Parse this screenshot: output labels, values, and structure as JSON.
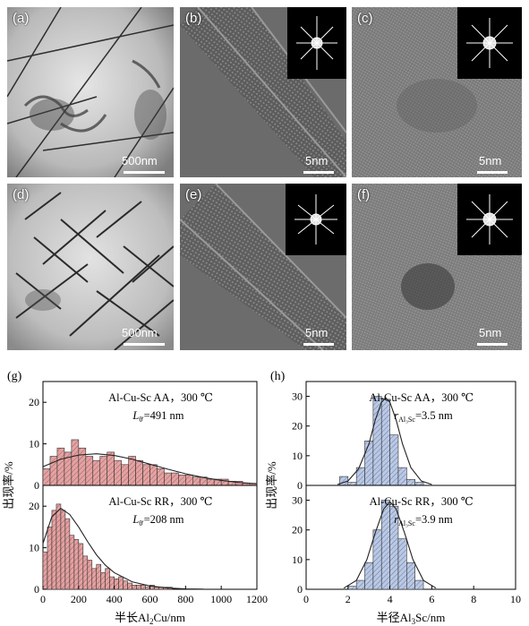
{
  "panels": [
    {
      "label": "(a)",
      "scale": "500nm"
    },
    {
      "label": "(b)",
      "scale": "5nm"
    },
    {
      "label": "(c)",
      "scale": "5nm"
    },
    {
      "label": "(d)",
      "scale": "500nm"
    },
    {
      "label": "(e)",
      "scale": "5nm"
    },
    {
      "label": "(f)",
      "scale": "5nm"
    }
  ],
  "chart_data": [
    {
      "type": "bar",
      "panel_label": "(g)",
      "ylabel": "出现率/%",
      "xlabel_prefix": "半长Al",
      "xlabel_sub": "2",
      "xlabel_suffix": "Cu/nm",
      "xlim": [
        0,
        1200
      ],
      "xticks": [
        0,
        200,
        400,
        600,
        800,
        1000,
        1200
      ],
      "bar_color": "#e8a0a0",
      "sub_charts": [
        {
          "label": "Al-Cu-Sc AA，300 ℃",
          "stat_name": "L",
          "stat_sub": "θ'",
          "stat_value": "=491 nm",
          "ylim": [
            0,
            25
          ],
          "yticks": [
            0,
            10,
            20
          ],
          "bin_width": 40,
          "bins_start": [
            0,
            40,
            80,
            120,
            160,
            200,
            240,
            280,
            320,
            360,
            400,
            440,
            480,
            520,
            560,
            600,
            640,
            680,
            720,
            760,
            800,
            840,
            880,
            920,
            960,
            1000,
            1040,
            1080,
            1120,
            1160
          ],
          "values": [
            4,
            7,
            9,
            8,
            11,
            9,
            7,
            6,
            7,
            8,
            6,
            5,
            7,
            6,
            5,
            5,
            4,
            3,
            3,
            2.5,
            2.5,
            2,
            2,
            1.5,
            1.5,
            1.5,
            1,
            1,
            0.5,
            0.5
          ],
          "fit_curve": [
            [
              0,
              4.5
            ],
            [
              100,
              6.3
            ],
            [
              200,
              7.3
            ],
            [
              300,
              7.6
            ],
            [
              400,
              7.2
            ],
            [
              500,
              6.3
            ],
            [
              600,
              5.1
            ],
            [
              700,
              3.9
            ],
            [
              800,
              2.8
            ],
            [
              900,
              1.9
            ],
            [
              1000,
              1.2
            ],
            [
              1100,
              0.7
            ],
            [
              1200,
              0.4
            ]
          ]
        },
        {
          "label": "Al-Cu-Sc RR，300 ℃",
          "stat_name": "L",
          "stat_sub": "θ'",
          "stat_value": "=208 nm",
          "ylim": [
            0,
            25
          ],
          "yticks": [
            0,
            10,
            20
          ],
          "bin_width": 25,
          "bins_start": [
            0,
            25,
            50,
            75,
            100,
            125,
            150,
            175,
            200,
            225,
            250,
            275,
            300,
            325,
            350,
            375,
            400,
            425,
            450,
            475,
            500,
            525,
            550,
            575,
            600,
            625,
            650,
            675,
            700
          ],
          "values": [
            9,
            15,
            19,
            20.5,
            19,
            17,
            13,
            12,
            11,
            8,
            7,
            5,
            6,
            4,
            5,
            3,
            2.5,
            3,
            2,
            1.5,
            1,
            1,
            1,
            0.5,
            1,
            0.5,
            0.5,
            0.5,
            0.5
          ],
          "fit_curve": [
            [
              0,
              11
            ],
            [
              50,
              17.5
            ],
            [
              100,
              19.5
            ],
            [
              150,
              18
            ],
            [
              200,
              15
            ],
            [
              250,
              11.5
            ],
            [
              300,
              8.3
            ],
            [
              350,
              5.8
            ],
            [
              400,
              4
            ],
            [
              500,
              1.8
            ],
            [
              600,
              0.8
            ],
            [
              700,
              0.3
            ],
            [
              800,
              0.1
            ],
            [
              900,
              0.05
            ]
          ]
        }
      ]
    },
    {
      "type": "bar",
      "panel_label": "(h)",
      "ylabel": "出现率/%",
      "xlabel_prefix": "半径Al",
      "xlabel_sub": "3",
      "xlabel_suffix": "Sc/nm",
      "xlim": [
        0,
        10
      ],
      "xticks": [
        0,
        2,
        4,
        6,
        8,
        10
      ],
      "bar_color": "#b8c8e8",
      "sub_charts": [
        {
          "label": "Al-Cu-Sc AA，300 ℃",
          "stat_name": "r",
          "stat_sub": "Al₃Sc",
          "stat_value": "=3.5 nm",
          "ylim": [
            0,
            35
          ],
          "yticks": [
            0,
            10,
            20,
            30
          ],
          "bin_width": 0.4,
          "bins_start": [
            1.6,
            2.0,
            2.4,
            2.8,
            3.2,
            3.6,
            4.0,
            4.4,
            4.8,
            5.2
          ],
          "values": [
            3,
            1,
            6,
            15,
            30,
            29,
            17,
            6,
            2,
            1
          ],
          "fit_curve": [
            [
              1.5,
              0.3
            ],
            [
              2.0,
              1.5
            ],
            [
              2.5,
              5.5
            ],
            [
              3.0,
              14
            ],
            [
              3.3,
              22
            ],
            [
              3.6,
              28
            ],
            [
              3.8,
              29.5
            ],
            [
              4.0,
              28
            ],
            [
              4.3,
              22
            ],
            [
              4.6,
              14
            ],
            [
              5.0,
              6
            ],
            [
              5.5,
              1.5
            ],
            [
              6.0,
              0.3
            ]
          ]
        },
        {
          "label": "Al-Cu-Sc RR，300 ℃",
          "stat_name": "r",
          "stat_sub": "Al₃Sc",
          "stat_value": "=3.9 nm",
          "ylim": [
            0,
            35
          ],
          "yticks": [
            0,
            10,
            20,
            30
          ],
          "bin_width": 0.4,
          "bins_start": [
            2.0,
            2.4,
            2.8,
            3.2,
            3.6,
            4.0,
            4.4,
            4.8,
            5.2
          ],
          "values": [
            1,
            3,
            9,
            20,
            30,
            28,
            17,
            9,
            3
          ],
          "fit_curve": [
            [
              1.8,
              0.4
            ],
            [
              2.4,
              3
            ],
            [
              2.9,
              10
            ],
            [
              3.3,
              19
            ],
            [
              3.7,
              27
            ],
            [
              4.0,
              29.5
            ],
            [
              4.3,
              27
            ],
            [
              4.7,
              19
            ],
            [
              5.1,
              10
            ],
            [
              5.6,
              3
            ],
            [
              6.2,
              0.4
            ]
          ]
        }
      ]
    }
  ]
}
